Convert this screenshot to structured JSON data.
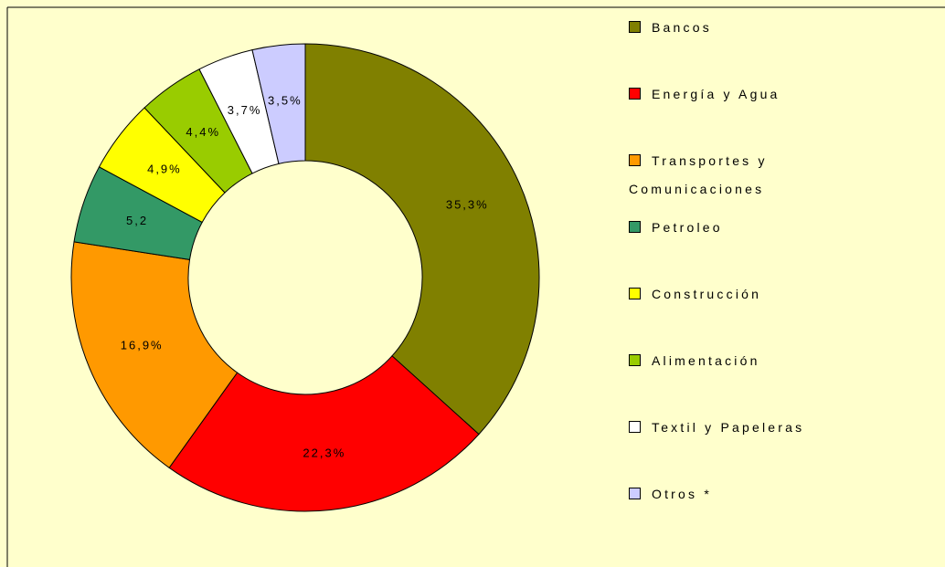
{
  "chart_data": {
    "type": "donut",
    "categories": [
      "Bancos",
      "Energía y Agua",
      "Transportes y Comunicaciones",
      "Petroleo",
      "Construcción",
      "Alimentación",
      "Textil y Papeleras",
      "Otros *"
    ],
    "values": [
      35.3,
      22.3,
      16.9,
      5.2,
      4.9,
      4.4,
      3.7,
      3.5
    ],
    "value_labels": [
      "35,3%",
      "22,3%",
      "16,9%",
      "5,2",
      "4,9%",
      "4,4%",
      "3,7%",
      "3,5%"
    ],
    "colors": [
      "#808000",
      "#ff0000",
      "#ff9900",
      "#339966",
      "#ffff00",
      "#99cc00",
      "#ffffff",
      "#ccccff"
    ],
    "legend": "right"
  }
}
